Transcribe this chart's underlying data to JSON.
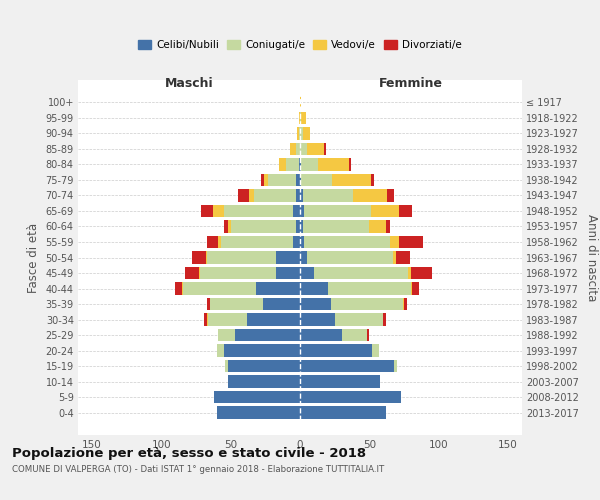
{
  "age_groups": [
    "0-4",
    "5-9",
    "10-14",
    "15-19",
    "20-24",
    "25-29",
    "30-34",
    "35-39",
    "40-44",
    "45-49",
    "50-54",
    "55-59",
    "60-64",
    "65-69",
    "70-74",
    "75-79",
    "80-84",
    "85-89",
    "90-94",
    "95-99",
    "100+"
  ],
  "birth_years": [
    "2013-2017",
    "2008-2012",
    "2003-2007",
    "1998-2002",
    "1993-1997",
    "1988-1992",
    "1983-1987",
    "1978-1982",
    "1973-1977",
    "1968-1972",
    "1963-1967",
    "1958-1962",
    "1953-1957",
    "1948-1952",
    "1943-1947",
    "1938-1942",
    "1933-1937",
    "1928-1932",
    "1923-1927",
    "1918-1922",
    "≤ 1917"
  ],
  "male": {
    "celibi": [
      60,
      62,
      52,
      52,
      55,
      47,
      38,
      27,
      32,
      17,
      17,
      5,
      3,
      5,
      3,
      3,
      1,
      0,
      0,
      0,
      0
    ],
    "coniugati": [
      0,
      0,
      0,
      2,
      5,
      12,
      28,
      38,
      52,
      55,
      50,
      52,
      47,
      50,
      30,
      20,
      9,
      3,
      1,
      0,
      0
    ],
    "vedovi": [
      0,
      0,
      0,
      0,
      0,
      0,
      1,
      0,
      1,
      1,
      1,
      2,
      2,
      8,
      4,
      3,
      5,
      4,
      1,
      1,
      0
    ],
    "divorziati": [
      0,
      0,
      0,
      0,
      0,
      0,
      2,
      2,
      5,
      10,
      10,
      8,
      3,
      8,
      8,
      2,
      0,
      0,
      0,
      0,
      0
    ]
  },
  "female": {
    "nubili": [
      62,
      73,
      58,
      68,
      52,
      30,
      25,
      22,
      20,
      10,
      5,
      3,
      2,
      3,
      2,
      1,
      1,
      0,
      0,
      0,
      0
    ],
    "coniugate": [
      0,
      0,
      0,
      2,
      5,
      18,
      35,
      52,
      60,
      68,
      62,
      62,
      48,
      48,
      36,
      22,
      12,
      5,
      2,
      1,
      0
    ],
    "vedove": [
      0,
      0,
      0,
      0,
      0,
      0,
      0,
      1,
      1,
      2,
      2,
      6,
      12,
      20,
      25,
      28,
      22,
      12,
      5,
      3,
      1
    ],
    "divorziate": [
      0,
      0,
      0,
      0,
      0,
      2,
      2,
      2,
      5,
      15,
      10,
      18,
      3,
      10,
      5,
      2,
      2,
      2,
      0,
      0,
      0
    ]
  },
  "colors": {
    "celibi": "#4472a8",
    "coniugati": "#c5d9a0",
    "vedovi": "#f5c842",
    "divorziati": "#cc2222"
  },
  "legend_labels": [
    "Celibi/Nubili",
    "Coniugati/e",
    "Vedovi/e",
    "Divorziati/e"
  ],
  "title": "Popolazione per età, sesso e stato civile - 2018",
  "subtitle": "COMUNE DI VALPERGA (TO) - Dati ISTAT 1° gennaio 2018 - Elaborazione TUTTITALIA.IT",
  "xlabel_left": "Maschi",
  "xlabel_right": "Femmine",
  "ylabel_left": "Fasce di età",
  "ylabel_right": "Anni di nascita",
  "xlim": 160,
  "bg_color": "#f0f0f0",
  "plot_bg": "#ffffff"
}
